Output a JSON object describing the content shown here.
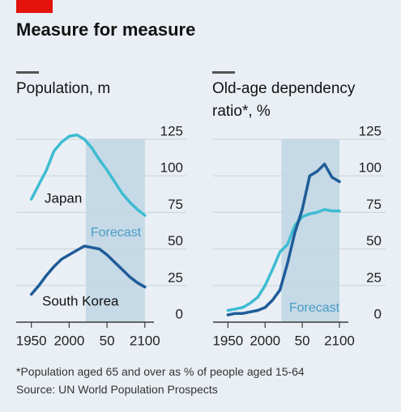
{
  "title": "Measure for measure",
  "chart_data": [
    {
      "type": "line",
      "title": "Population, m",
      "x": [
        1950,
        1960,
        1970,
        1980,
        1990,
        2000,
        2010,
        2020,
        2030,
        2040,
        2050,
        2060,
        2070,
        2080,
        2090,
        2100
      ],
      "series": [
        {
          "name": "Japan",
          "color": "#3ebcd2",
          "values": [
            84,
            94,
            104,
            117,
            123,
            127,
            128,
            125,
            119,
            111,
            104,
            96,
            88,
            82,
            77,
            73
          ]
        },
        {
          "name": "South Korea",
          "color": "#1f5c99",
          "values": [
            19,
            25,
            32,
            38,
            43,
            46,
            49,
            52,
            51,
            50,
            46,
            41,
            36,
            31,
            27,
            24
          ]
        }
      ],
      "shade": {
        "from": 2022,
        "to": 2100,
        "label": "Forecast"
      },
      "xlim": [
        1930,
        2112
      ],
      "xticks": [
        1950,
        2000,
        {
          "value": 2050,
          "label": "50"
        },
        2100
      ],
      "ylim": [
        0,
        125
      ],
      "yticks": [
        0,
        25,
        50,
        75,
        100,
        125
      ],
      "grid": true
    },
    {
      "type": "line",
      "title": "Old-age dependency ratio*, %",
      "x": [
        1950,
        1960,
        1970,
        1980,
        1990,
        2000,
        2010,
        2020,
        2030,
        2040,
        2050,
        2060,
        2070,
        2080,
        2090,
        2100
      ],
      "series": [
        {
          "color": "#3ebcd2",
          "values": [
            8,
            9,
            10,
            13,
            17,
            25,
            36,
            48,
            53,
            66,
            72,
            74,
            75,
            77,
            76,
            76
          ]
        },
        {
          "color": "#1f5c99",
          "values": [
            5,
            6,
            6,
            7,
            8,
            10,
            15,
            22,
            40,
            61,
            77,
            100,
            103,
            108,
            99,
            96
          ]
        }
      ],
      "shade": {
        "from": 2022,
        "to": 2100,
        "label": "Forecast"
      },
      "xlim": [
        1930,
        2112
      ],
      "xticks": [
        1950,
        2000,
        {
          "value": 2050,
          "label": "50"
        },
        2100
      ],
      "ylim": [
        0,
        125
      ],
      "yticks": [
        0,
        25,
        50,
        75,
        100,
        125
      ],
      "grid": true
    }
  ],
  "footnote": "*Population aged 65 and over as % of people aged 15-64",
  "source": "Source: UN World Population Prospects"
}
